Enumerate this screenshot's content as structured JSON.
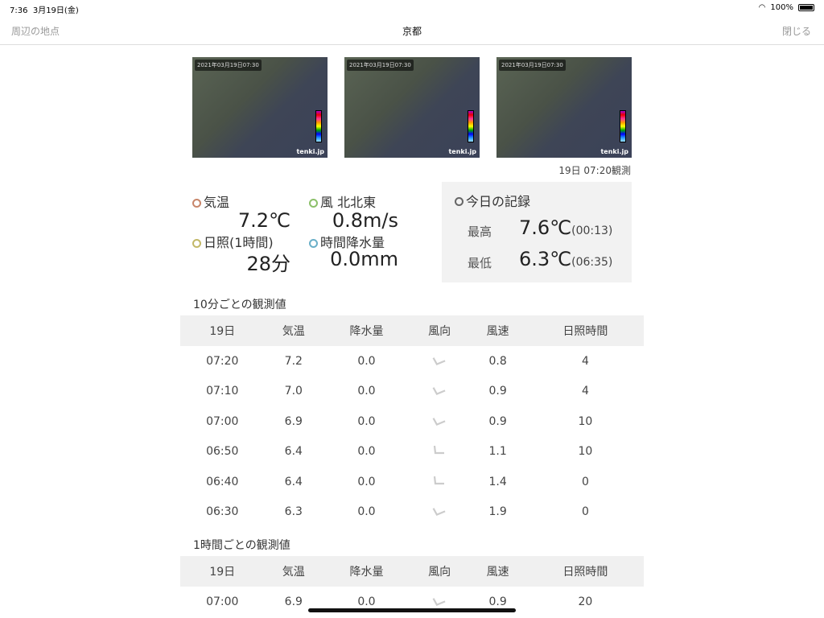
{
  "status_bar": {
    "time": "7:36",
    "date": "3月19日(金)",
    "battery": "100%",
    "battery_level": 100
  },
  "nav": {
    "left": "周辺の地点",
    "title": "京都",
    "right": "閉じる"
  },
  "maps": [
    {
      "timestamp": "2021年03月19日07:30",
      "logo": "tenki.jp"
    },
    {
      "timestamp": "2021年03月19日07:30",
      "logo": "tenki.jp"
    },
    {
      "timestamp": "2021年03月19日07:30",
      "logo": "tenki.jp"
    }
  ],
  "observed": "19日 07:20観測",
  "current": {
    "temp_label": "気温",
    "temp": "7.2℃",
    "wind_label": "風 北北東",
    "wind": "0.8m/s",
    "sun_label": "日照(1時間)",
    "sun": "28分",
    "precip_label": "時間降水量",
    "precip": "0.0mm"
  },
  "colors": {
    "temp": "#c8866a",
    "wind": "#8cc06a",
    "sun": "#c2b868",
    "precip": "#6aafc8",
    "record": "#666666"
  },
  "record": {
    "title": "今日の記録",
    "max_label": "最高",
    "max": "7.6℃",
    "max_time": "(00:13)",
    "min_label": "最低",
    "min": "6.3℃",
    "min_time": "(06:35)"
  },
  "ten_min": {
    "title": "10分ごとの観測値",
    "headers": [
      "19日",
      "気温",
      "降水量",
      "風向",
      "風速",
      "日照時間"
    ],
    "rows": [
      {
        "time": "07:20",
        "temp": "7.2",
        "precip": "0.0",
        "wind_angle": 22.5,
        "speed": "0.8",
        "sun": "4"
      },
      {
        "time": "07:10",
        "temp": "7.0",
        "precip": "0.0",
        "wind_angle": 22.5,
        "speed": "0.9",
        "sun": "4"
      },
      {
        "time": "07:00",
        "temp": "6.9",
        "precip": "0.0",
        "wind_angle": 22.5,
        "speed": "0.9",
        "sun": "10"
      },
      {
        "time": "06:50",
        "temp": "6.4",
        "precip": "0.0",
        "wind_angle": 0,
        "speed": "1.1",
        "sun": "10"
      },
      {
        "time": "06:40",
        "temp": "6.4",
        "precip": "0.0",
        "wind_angle": 0,
        "speed": "1.4",
        "sun": "0"
      },
      {
        "time": "06:30",
        "temp": "6.3",
        "precip": "0.0",
        "wind_angle": 22.5,
        "speed": "1.9",
        "sun": "0"
      }
    ]
  },
  "hourly": {
    "title": "1時間ごとの観測値",
    "headers": [
      "19日",
      "気温",
      "降水量",
      "風向",
      "風速",
      "日照時間"
    ],
    "rows": [
      {
        "time": "07:00",
        "temp": "6.9",
        "precip": "0.0",
        "wind_angle": 22.5,
        "speed": "0.9",
        "sun": "20"
      }
    ]
  }
}
